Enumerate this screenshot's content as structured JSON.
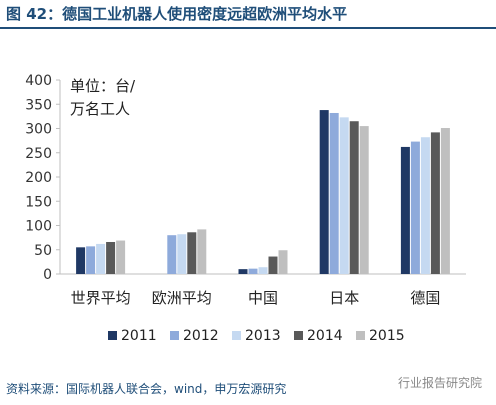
{
  "header": {
    "title": "图 42：德国工业机器人使用密度远超欧洲平均水平"
  },
  "footer": {
    "source": "资料来源：国际机器人联合会，wind，申万宏源研究",
    "watermark": "行业报告研究院"
  },
  "chart_data": {
    "type": "bar",
    "unit_label": [
      "单位：台/",
      "万名工人"
    ],
    "categories": [
      "世界平均",
      "欧洲平均",
      "中国",
      "日本",
      "德国"
    ],
    "series": [
      {
        "name": "2011",
        "color": "#1f3864",
        "values": [
          55,
          0,
          10,
          338,
          262
        ]
      },
      {
        "name": "2012",
        "color": "#8eaadb",
        "values": [
          57,
          80,
          11,
          332,
          273
        ]
      },
      {
        "name": "2013",
        "color": "#c5d9f1",
        "values": [
          62,
          82,
          14,
          323,
          282
        ]
      },
      {
        "name": "2014",
        "color": "#595959",
        "values": [
          66,
          86,
          36,
          315,
          292
        ]
      },
      {
        "name": "2015",
        "color": "#bfbfbf",
        "values": [
          69,
          92,
          49,
          305,
          301
        ]
      }
    ],
    "y_ticks": [
      0,
      50,
      100,
      150,
      200,
      250,
      300,
      350,
      400
    ],
    "ylim": [
      0,
      400
    ],
    "legend_position": "bottom",
    "grid": false
  }
}
